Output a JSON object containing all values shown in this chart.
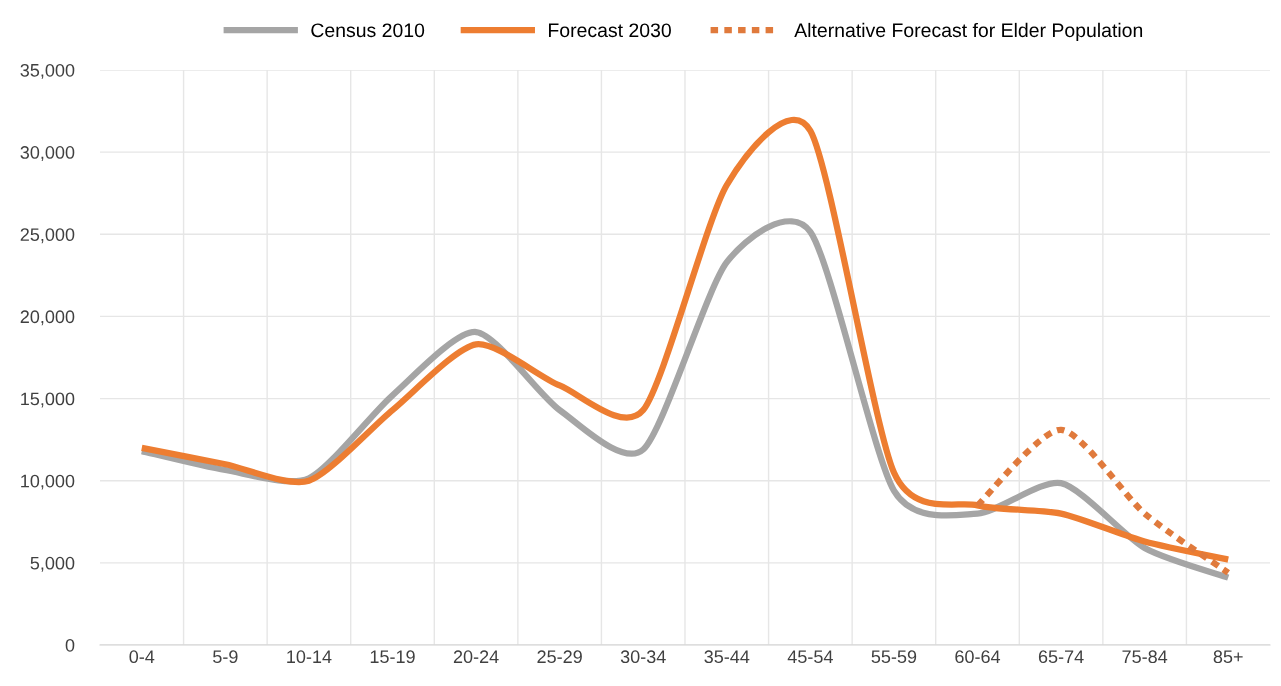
{
  "chart_data": {
    "type": "line",
    "categories": [
      "0-4",
      "5-9",
      "10-14",
      "15-19",
      "20-24",
      "25-29",
      "30-34",
      "35-44",
      "45-54",
      "55-59",
      "60-64",
      "65-74",
      "75-84",
      "85+"
    ],
    "series": [
      {
        "name": "Census 2010",
        "color": "#a5a5a5",
        "line_style": "solid",
        "values": [
          11800,
          10650,
          10150,
          15200,
          19050,
          14300,
          11900,
          23300,
          25150,
          9400,
          8000,
          9850,
          5900,
          4100
        ]
      },
      {
        "name": "Forecast 2030",
        "color": "#ed7d31",
        "line_style": "solid",
        "values": [
          12000,
          11000,
          10000,
          14300,
          18300,
          15800,
          14300,
          28000,
          31300,
          10500,
          8500,
          8000,
          6300,
          5200
        ]
      },
      {
        "name": "Alternative Forecast for Elder Population",
        "color": "#e07a3c",
        "line_style": "dotted",
        "values": [
          null,
          null,
          null,
          null,
          null,
          null,
          null,
          null,
          null,
          null,
          8500,
          13100,
          8000,
          4400
        ]
      }
    ],
    "ylim": [
      0,
      35000
    ],
    "yticks": [
      0,
      {
        "value": 5000,
        "label": "5,000"
      },
      {
        "value": 10000,
        "label": "10,000"
      },
      {
        "value": 15000,
        "label": "15,000"
      },
      {
        "value": 20000,
        "label": "20,000"
      },
      {
        "value": 25000,
        "label": "25,000"
      },
      {
        "value": 30000,
        "label": "30,000"
      },
      {
        "value": 35000,
        "label": "35,000"
      }
    ],
    "grid": true,
    "legend": "top"
  }
}
